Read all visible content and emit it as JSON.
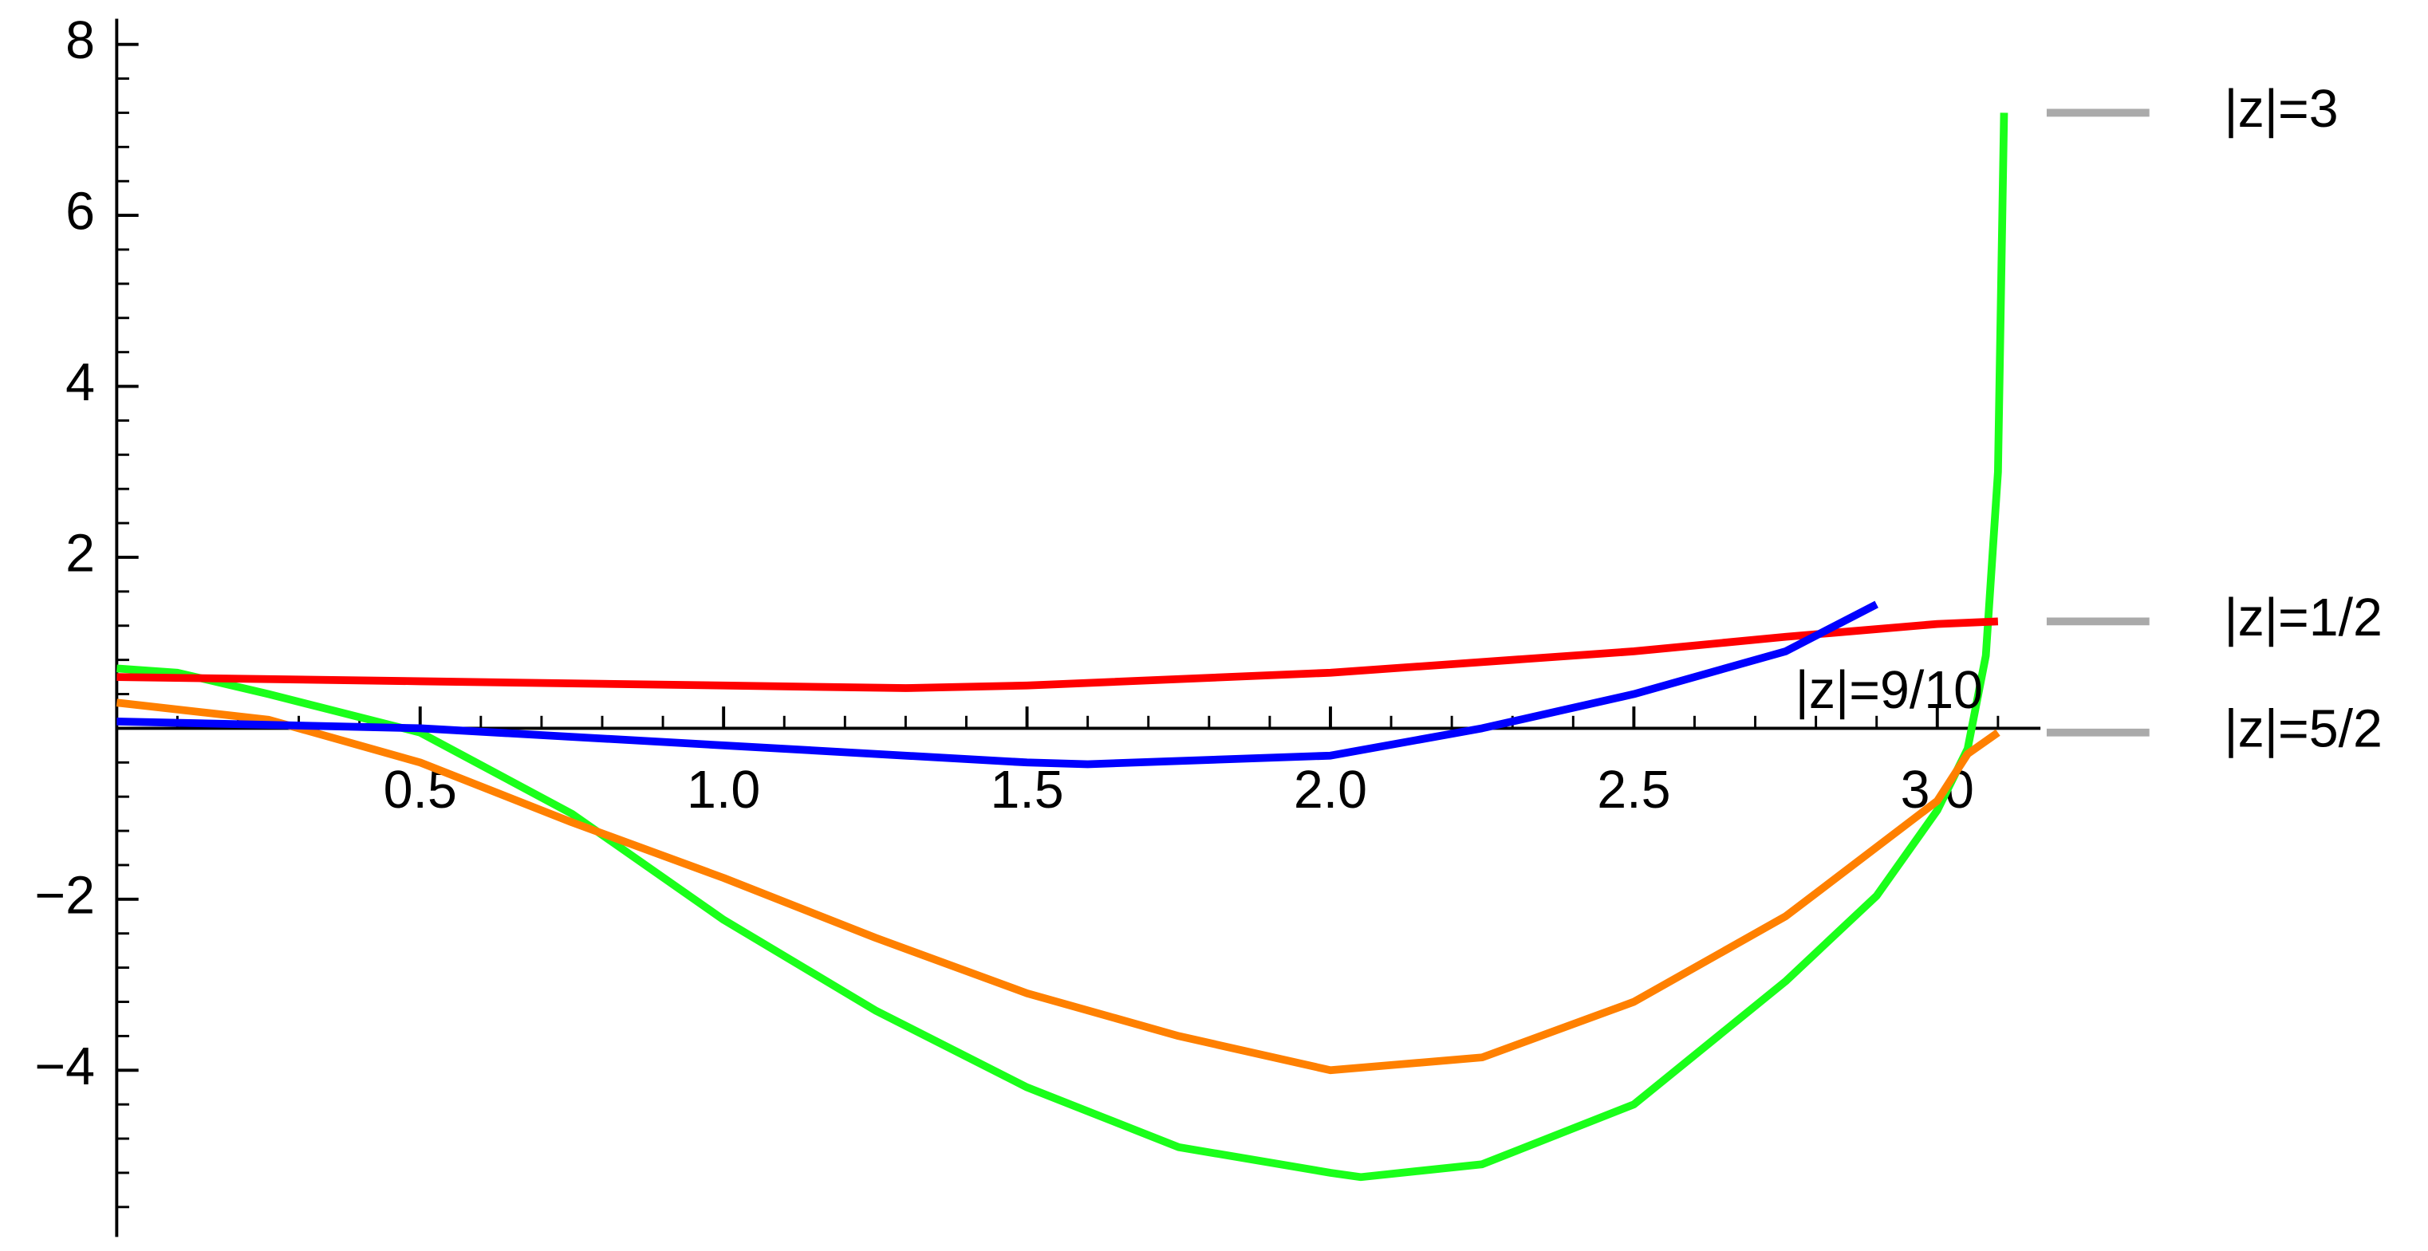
{
  "chart_data": {
    "type": "line",
    "xlim": [
      0,
      3.17
    ],
    "ylim": [
      -5.95,
      8.3
    ],
    "xticks": [
      0.5,
      {
        "value": 1,
        "label": "1.0"
      },
      1.5,
      {
        "value": 2,
        "label": "2.0"
      },
      2.5,
      {
        "value": 3,
        "label": "3.0"
      }
    ],
    "yticks": [
      {
        "value": -4,
        "label": "−4"
      },
      {
        "value": -2,
        "label": "−2"
      },
      2,
      4,
      6,
      8
    ],
    "xminorticks": [
      0.1,
      0.2,
      0.3,
      0.4,
      0.6,
      0.7,
      0.8,
      0.9,
      1.1,
      1.2,
      1.3,
      1.4,
      1.6,
      1.7,
      1.8,
      1.9,
      2.1,
      2.2,
      2.3,
      2.4,
      2.6,
      2.7,
      2.8,
      2.9,
      3.1
    ],
    "yminorticks": [
      -5.6,
      -5.2,
      -4.8,
      -4.4,
      -3.6,
      -3.2,
      -2.8,
      -2.4,
      -1.6,
      -1.2,
      -0.8,
      -0.4,
      0.4,
      0.8,
      1.2,
      1.6,
      2.4,
      2.8,
      3.2,
      3.6,
      4.4,
      4.8,
      5.2,
      5.6,
      6.4,
      6.8,
      7.2,
      7.6
    ],
    "series": [
      {
        "name": "|z|=3",
        "color": "#1aff1a",
        "x": [
          0,
          0.1,
          0.25,
          0.5,
          0.75,
          1.0,
          1.25,
          1.5,
          1.75,
          2.0,
          2.05,
          2.25,
          2.5,
          2.75,
          2.9,
          3.0,
          3.05,
          3.08,
          3.1,
          3.11
        ],
        "values": [
          0.7,
          0.65,
          0.4,
          -0.05,
          -1.0,
          -2.24,
          -3.3,
          -4.2,
          -4.9,
          -5.2,
          -5.25,
          -5.1,
          -4.4,
          -2.96,
          -1.96,
          -0.96,
          -0.24,
          0.85,
          3.0,
          7.2
        ]
      },
      {
        "name": "|z|=1/2",
        "color": "#ff0000",
        "x": [
          0,
          0.5,
          1.0,
          1.3,
          1.5,
          2.0,
          2.5,
          2.75,
          3.0,
          3.1
        ],
        "values": [
          0.6,
          0.55,
          0.5,
          0.47,
          0.5,
          0.65,
          0.9,
          1.07,
          1.22,
          1.25
        ]
      },
      {
        "name": "|z|=5/2",
        "color": "#ff8000",
        "x": [
          0,
          0.25,
          0.5,
          0.75,
          1.0,
          1.25,
          1.5,
          1.75,
          2.0,
          2.25,
          2.5,
          2.75,
          3.0,
          3.05,
          3.1
        ],
        "values": [
          0.3,
          0.1,
          -0.4,
          -1.1,
          -1.75,
          -2.45,
          -3.1,
          -3.6,
          -4.0,
          -3.85,
          -3.2,
          -2.2,
          -0.85,
          -0.3,
          -0.05
        ]
      },
      {
        "name": "|z|=9/10",
        "color": "#0000ff",
        "x": [
          0,
          0.5,
          1.0,
          1.5,
          1.6,
          2.0,
          2.25,
          2.5,
          2.75,
          2.9
        ],
        "values": [
          0.08,
          0,
          -0.2,
          -0.4,
          -0.42,
          -0.32,
          0,
          0.4,
          0.9,
          1.45
        ]
      }
    ]
  }
}
